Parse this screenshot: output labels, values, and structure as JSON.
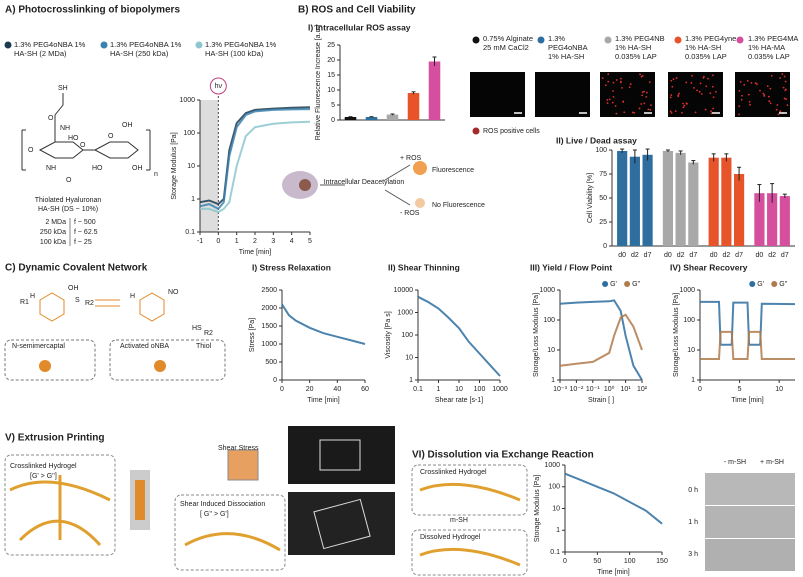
{
  "panels": {
    "a": {
      "title": "A) Photocrosslinking of biopolymers",
      "atoms": [
        "SH",
        "O",
        "NH",
        "O",
        "HO",
        "O",
        "O",
        "OH",
        "HO",
        "OH",
        "NH",
        "O",
        "n"
      ],
      "structure_name": "Thiolated Hyaluronan",
      "structure_sub": "HA-SH (DS ~ 10%)",
      "mw_table": [
        [
          "2 MDa",
          "f ~ 500"
        ],
        [
          "250 kDa",
          "f ~ 62.5"
        ],
        [
          "100 kDa",
          "f ~ 25"
        ]
      ]
    },
    "b": {
      "title": "B) ROS and Cell Viability",
      "sub1": "I) Intracellular ROS assay",
      "sub2": "II) Live / Dead assay",
      "conditions": [
        "0.75% Alginate 25 mM CaCl2",
        "1.3% PEG4oNBA 1% HA-SH",
        "1.3% PEG4NB 1% HA-SH 0.035% LAP",
        "1.3% PEG4yne 1% HA-SH 0.035% LAP",
        "1.3% PEG4MA 1% HA-MA 0.035% LAP"
      ],
      "condition_colors": [
        "#111111",
        "#2e6fa0",
        "#a8a8a8",
        "#e8542a",
        "#d64f9e"
      ],
      "ros_legend": "ROS positive cells",
      "scheme": {
        "step": "Intracellular Deacetylation",
        "plus": "+ ROS",
        "minus": "- ROS",
        "yes": "Fluorescence",
        "no": "No Fluorescence"
      }
    },
    "c": {
      "title": "C) Dynamic Covalent Network",
      "atoms": [
        "R1",
        "H",
        "OH",
        "S",
        "R2",
        "H",
        "NO",
        "HS",
        "R2"
      ],
      "labels": [
        "N-semimercaptal",
        "Activated oNBA",
        "Thiol"
      ]
    },
    "v": {
      "title": "V) Extrusion Printing",
      "gel": "Crosslinked Hydrogel",
      "gel_cond": "[G' > G'']",
      "stress": "Shear Stress",
      "dissoc": "Shear Induced Dissociation",
      "dissoc_cond": "[ G'' > G']"
    },
    "vi": {
      "title": "VI) Dissolution via Exchange Reaction",
      "gel": "Crosslinked Hydrogel",
      "reagent": "m-SH",
      "dissolved": "Dissolved Hydrogel",
      "columns": [
        "- m-SH",
        "+ m-SH"
      ],
      "rows": [
        "0 h",
        "1 h",
        "3 h"
      ]
    }
  },
  "chart_data": [
    {
      "type": "line",
      "xlabel": "Time [min]",
      "ylabel": "Storage Modulus [Pa]",
      "annotation": "hν",
      "xlim": [
        -1,
        5
      ],
      "ylim": [
        0.1,
        1000
      ],
      "ylog": true,
      "xticks": [
        -1,
        0,
        1,
        2,
        3,
        4,
        5
      ],
      "yticks": [
        0.1,
        1,
        10,
        100,
        1000
      ],
      "x": [
        -1,
        -0.5,
        0,
        0.3,
        0.6,
        1,
        1.5,
        2,
        3,
        4,
        5
      ],
      "series": [
        {
          "name": "1.3% PEG4oNBA 1% HA-SH (2 MDa)",
          "color": "#1d3b4f",
          "values": [
            0.8,
            0.9,
            0.7,
            1,
            30,
            200,
            400,
            500,
            550,
            580,
            600
          ]
        },
        {
          "name": "1.3% PEG4oNBA 1% HA-SH (250 kDa)",
          "color": "#3a82b0",
          "values": [
            0.6,
            0.7,
            0.5,
            0.8,
            20,
            150,
            350,
            450,
            500,
            520,
            530
          ]
        },
        {
          "name": "1.3% PEG4oNBA 1% HA-SH (100 kDa)",
          "color": "#8cc7cf",
          "values": [
            0.5,
            0.5,
            0.4,
            0.5,
            0.8,
            10,
            80,
            150,
            190,
            210,
            220
          ]
        }
      ]
    },
    {
      "type": "bar",
      "ylabel": "Relative Fluorescence Increase [a.u.]",
      "ylim": [
        0,
        25
      ],
      "yticks": [
        0,
        5,
        10,
        15,
        20,
        25
      ],
      "values": [
        1,
        1,
        1.8,
        9,
        19.5
      ],
      "errors": [
        0.1,
        0.1,
        0.2,
        0.4,
        1.5
      ],
      "colors": [
        "#111111",
        "#2e6fa0",
        "#a8a8a8",
        "#e8542a",
        "#d64f9e"
      ]
    },
    {
      "type": "bar",
      "ylabel": "Cell Viability [%]",
      "ylim": [
        0,
        100
      ],
      "yticks": [
        0,
        25,
        50,
        75,
        100
      ],
      "categories": [
        "d0",
        "d2",
        "d7"
      ],
      "series": [
        {
          "color": "#2e6fa0",
          "values": [
            99,
            93,
            95
          ],
          "errors": [
            2,
            7,
            6
          ]
        },
        {
          "color": "#a8a8a8",
          "values": [
            99,
            97,
            87
          ],
          "errors": [
            1,
            2,
            2
          ]
        },
        {
          "color": "#e8542a",
          "values": [
            92,
            92,
            75
          ],
          "errors": [
            4,
            4,
            7
          ]
        },
        {
          "color": "#d64f9e",
          "values": [
            55,
            55,
            52
          ],
          "errors": [
            9,
            10,
            2
          ]
        }
      ]
    },
    {
      "type": "line",
      "title": "I) Stress Relaxation",
      "xlabel": "Time [min]",
      "ylabel": "Stress [Pa]",
      "xlim": [
        0,
        60
      ],
      "ylim": [
        0,
        2500
      ],
      "xticks": [
        0,
        20,
        40,
        60
      ],
      "yticks": [
        0,
        500,
        1000,
        1500,
        2000,
        2500
      ],
      "x": [
        0,
        5,
        10,
        20,
        30,
        40,
        50,
        60
      ],
      "series": [
        {
          "color": "#2e6fa0",
          "values": [
            2100,
            1800,
            1650,
            1450,
            1300,
            1200,
            1100,
            1000
          ]
        }
      ]
    },
    {
      "type": "line",
      "title": "II) Shear Thinning",
      "xlabel": "Shear rate [s-1]",
      "ylabel": "Viscosity [Pa s]",
      "xlim": [
        0.1,
        1000
      ],
      "ylim": [
        1,
        10000
      ],
      "xlog": true,
      "ylog": true,
      "xticks": [
        0.1,
        1,
        10,
        100,
        1000
      ],
      "yticks": [
        1,
        10,
        100,
        1000,
        10000
      ],
      "x": [
        0.1,
        0.3,
        1,
        3,
        10,
        30,
        100,
        300,
        1000
      ],
      "series": [
        {
          "color": "#2e6fa0",
          "values": [
            5000,
            3000,
            1500,
            600,
            200,
            50,
            15,
            5,
            1.5
          ]
        }
      ]
    },
    {
      "type": "line",
      "title": "III) Yield / Flow Point",
      "xlabel": "Strain [ ]",
      "ylabel": "Storage/Loss Modulus [Pa]",
      "xlim": [
        0.001,
        100
      ],
      "ylim": [
        1,
        1000
      ],
      "xlog": true,
      "ylog": true,
      "xticks": [
        {
          "value": 0.001,
          "label": "10⁻³"
        },
        {
          "value": 0.01,
          "label": "10⁻²"
        },
        {
          "value": 0.1,
          "label": "10⁻¹"
        },
        {
          "value": 1,
          "label": "10⁰"
        },
        {
          "value": 10,
          "label": "10¹"
        },
        {
          "value": 100,
          "label": "10²"
        }
      ],
      "yticks": [
        1,
        10,
        100,
        1000
      ],
      "x": [
        0.001,
        0.01,
        0.1,
        1,
        2,
        5,
        10,
        30,
        100
      ],
      "series": [
        {
          "name": "G'",
          "color": "#2e6fa0",
          "values": [
            350,
            380,
            400,
            420,
            450,
            200,
            30,
            3,
            1
          ]
        },
        {
          "name": "G''",
          "color": "#b07a4a",
          "values": [
            3,
            3.5,
            4,
            8,
            30,
            120,
            150,
            60,
            10
          ]
        }
      ]
    },
    {
      "type": "line",
      "title": "IV) Shear Recovery",
      "xlabel": "Time [min]",
      "ylabel": "Storage/Loss Modulus [Pa]",
      "xlim": [
        0,
        12
      ],
      "ylim": [
        1,
        1000
      ],
      "ylog": true,
      "xticks": [
        0,
        5,
        10
      ],
      "yticks": [
        1,
        10,
        100,
        1000
      ],
      "x": [
        0,
        2.4,
        2.6,
        4,
        4.2,
        6,
        6.2,
        7.6,
        7.8,
        12
      ],
      "series": [
        {
          "name": "G'",
          "color": "#2e6fa0",
          "values": [
            400,
            400,
            15,
            15,
            380,
            380,
            15,
            15,
            350,
            340
          ]
        },
        {
          "name": "G''",
          "color": "#b07a4a",
          "values": [
            5,
            5,
            40,
            40,
            5,
            5,
            40,
            40,
            5,
            5
          ]
        }
      ]
    },
    {
      "type": "line",
      "xlabel": "Time [min]",
      "ylabel": "Storage Modulus [Pa]",
      "xlim": [
        0,
        150
      ],
      "ylim": [
        0.1,
        1000
      ],
      "ylog": true,
      "xticks": [
        0,
        50,
        100,
        150
      ],
      "yticks": [
        0.1,
        1,
        10,
        100,
        1000
      ],
      "x": [
        0,
        25,
        50,
        75,
        100,
        125,
        150
      ],
      "series": [
        {
          "color": "#2e6fa0",
          "values": [
            400,
            200,
            100,
            50,
            20,
            8,
            2
          ]
        }
      ]
    }
  ]
}
